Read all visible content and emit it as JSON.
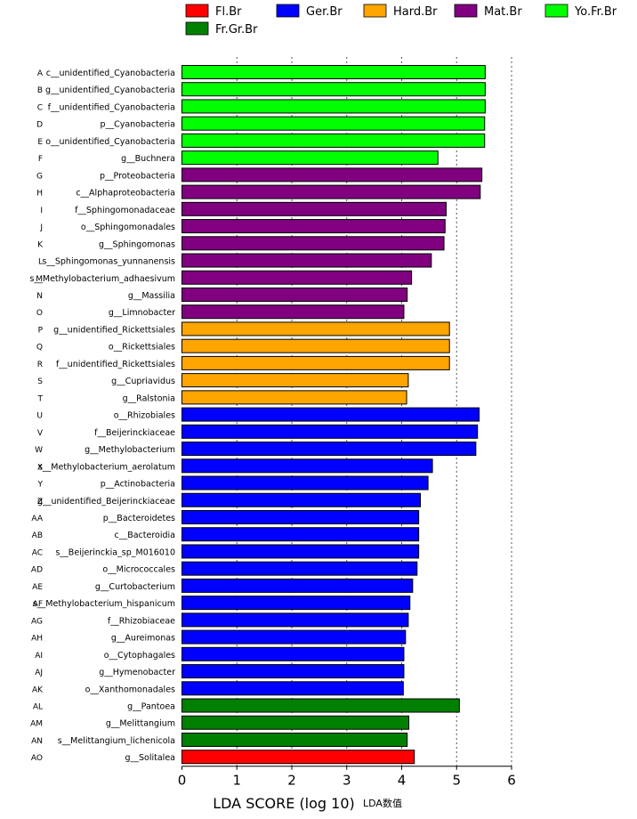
{
  "chart_data": {
    "type": "bar",
    "orientation": "horizontal",
    "xlabel": "LDA SCORE (log 10)",
    "xlabel_extra": "LDA数值",
    "xlim": [
      0,
      6
    ],
    "xticks": [
      0,
      1,
      2,
      3,
      4,
      5,
      6
    ],
    "grid": "vertical dotted lines",
    "legend_position": "top",
    "legend": [
      {
        "name": "Fl.Br",
        "color": "#ff0000"
      },
      {
        "name": "Ger.Br",
        "color": "#0000ff"
      },
      {
        "name": "Hard.Br",
        "color": "#ffa500"
      },
      {
        "name": "Mat.Br",
        "color": "#800080"
      },
      {
        "name": "Yo.Fr.Br",
        "color": "#00ff00"
      },
      {
        "name": "Fr.Gr.Br",
        "color": "#008000"
      }
    ],
    "bars": [
      {
        "code": "A",
        "label": "c__unidentified_Cyanobacteria",
        "value": 5.52,
        "group": "Yo.Fr.Br"
      },
      {
        "code": "B",
        "label": "g__unidentified_Cyanobacteria",
        "value": 5.52,
        "group": "Yo.Fr.Br"
      },
      {
        "code": "C",
        "label": "f__unidentified_Cyanobacteria",
        "value": 5.52,
        "group": "Yo.Fr.Br"
      },
      {
        "code": "D",
        "label": "p__Cyanobacteria",
        "value": 5.51,
        "group": "Yo.Fr.Br"
      },
      {
        "code": "E",
        "label": "o__unidentified_Cyanobacteria",
        "value": 5.51,
        "group": "Yo.Fr.Br"
      },
      {
        "code": "F",
        "label": "g__Buchnera",
        "value": 4.66,
        "group": "Yo.Fr.Br"
      },
      {
        "code": "G",
        "label": "p__Proteobacteria",
        "value": 5.46,
        "group": "Mat.Br"
      },
      {
        "code": "H",
        "label": "c__Alphaproteobacteria",
        "value": 5.43,
        "group": "Mat.Br"
      },
      {
        "code": "I",
        "label": "f__Sphingomonadaceae",
        "value": 4.81,
        "group": "Mat.Br"
      },
      {
        "code": "J",
        "label": "o__Sphingomonadales",
        "value": 4.79,
        "group": "Mat.Br"
      },
      {
        "code": "K",
        "label": "g__Sphingomonas",
        "value": 4.77,
        "group": "Mat.Br"
      },
      {
        "code": "L",
        "label": "s__Sphingomonas_yunnanensis",
        "value": 4.54,
        "group": "Mat.Br"
      },
      {
        "code": "M",
        "label": "s__Methylobacterium_adhaesivum",
        "value": 4.18,
        "group": "Mat.Br"
      },
      {
        "code": "N",
        "label": "g__Massilia",
        "value": 4.1,
        "group": "Mat.Br"
      },
      {
        "code": "O",
        "label": "g__Limnobacter",
        "value": 4.04,
        "group": "Mat.Br"
      },
      {
        "code": "P",
        "label": "g__unidentified_Rickettsiales",
        "value": 4.87,
        "group": "Hard.Br"
      },
      {
        "code": "Q",
        "label": "o__Rickettsiales",
        "value": 4.87,
        "group": "Hard.Br"
      },
      {
        "code": "R",
        "label": "f__unidentified_Rickettsiales",
        "value": 4.87,
        "group": "Hard.Br"
      },
      {
        "code": "S",
        "label": "g__Cupriavidus",
        "value": 4.12,
        "group": "Hard.Br"
      },
      {
        "code": "T",
        "label": "g__Ralstonia",
        "value": 4.09,
        "group": "Hard.Br"
      },
      {
        "code": "U",
        "label": "o__Rhizobiales",
        "value": 5.41,
        "group": "Ger.Br"
      },
      {
        "code": "V",
        "label": "f__Beijerinckiaceae",
        "value": 5.38,
        "group": "Ger.Br"
      },
      {
        "code": "W",
        "label": "g__Methylobacterium",
        "value": 5.35,
        "group": "Ger.Br"
      },
      {
        "code": "X",
        "label": "s__Methylobacterium_aerolatum",
        "value": 4.56,
        "group": "Ger.Br"
      },
      {
        "code": "Y",
        "label": "p__Actinobacteria",
        "value": 4.48,
        "group": "Ger.Br"
      },
      {
        "code": "Z",
        "label": "g__unidentified_Beijerinckiaceae",
        "value": 4.34,
        "group": "Ger.Br"
      },
      {
        "code": "AA",
        "label": "p__Bacteroidetes",
        "value": 4.31,
        "group": "Ger.Br"
      },
      {
        "code": "AB",
        "label": "c__Bacteroidia",
        "value": 4.31,
        "group": "Ger.Br"
      },
      {
        "code": "AC",
        "label": "s__Beijerinckia_sp_M016010",
        "value": 4.31,
        "group": "Ger.Br"
      },
      {
        "code": "AD",
        "label": "o__Micrococcales",
        "value": 4.28,
        "group": "Ger.Br"
      },
      {
        "code": "AE",
        "label": "g__Curtobacterium",
        "value": 4.2,
        "group": "Ger.Br"
      },
      {
        "code": "AF",
        "label": "s__Methylobacterium_hispanicum",
        "value": 4.15,
        "group": "Ger.Br"
      },
      {
        "code": "AG",
        "label": "f__Rhizobiaceae",
        "value": 4.12,
        "group": "Ger.Br"
      },
      {
        "code": "AH",
        "label": "g__Aureimonas",
        "value": 4.07,
        "group": "Ger.Br"
      },
      {
        "code": "AI",
        "label": "o__Cytophagales",
        "value": 4.04,
        "group": "Ger.Br"
      },
      {
        "code": "AJ",
        "label": "g__Hymenobacter",
        "value": 4.04,
        "group": "Ger.Br"
      },
      {
        "code": "AK",
        "label": "o__Xanthomonadales",
        "value": 4.03,
        "group": "Ger.Br"
      },
      {
        "code": "AL",
        "label": "g__Pantoea",
        "value": 5.05,
        "group": "Fr.Gr.Br"
      },
      {
        "code": "AM",
        "label": "g__Melittangium",
        "value": 4.13,
        "group": "Fr.Gr.Br"
      },
      {
        "code": "AN",
        "label": "s__Melittangium_lichenicola",
        "value": 4.1,
        "group": "Fr.Gr.Br"
      },
      {
        "code": "AO",
        "label": "g__Solitalea",
        "value": 4.23,
        "group": "Fl.Br"
      }
    ]
  }
}
